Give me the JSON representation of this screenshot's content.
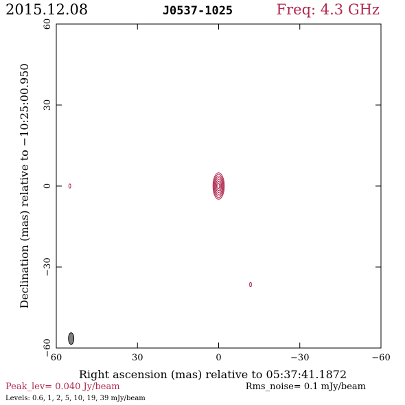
{
  "header": {
    "date": "2015.12.08",
    "source": "J0537-1025",
    "freq": "Freq: 4.3 GHz"
  },
  "footer": {
    "peak": "Peak_lev=  0.040 Jy/beam",
    "rms": "Rms_noise=  0.1 mJy/beam",
    "levels": "Levels: 0.6,   1,   2,   5,  10,  19,  39 mJy/beam"
  },
  "colors": {
    "contour": "#b0284f",
    "accent_text": "#b0284f",
    "axis": "#000000",
    "beam_fill": "#808080"
  },
  "chart_data": {
    "type": "contour",
    "xlabel": "Right ascension (mas) relative to 05:37:41.1872",
    "ylabel": "Declination (mas) relative to −10:25:00.950",
    "xlim": [
      60,
      -60
    ],
    "ylim": [
      -60,
      60
    ],
    "x_ticks": [
      60,
      30,
      0,
      -30,
      -60
    ],
    "y_ticks": [
      60,
      30,
      0,
      -30,
      -60
    ],
    "x_tick_labels": [
      "60",
      "30",
      "0",
      "−30",
      "−60"
    ],
    "y_tick_labels": [
      "60",
      "30",
      "0",
      "−30",
      "−60"
    ],
    "levels_mJy": [
      0.6,
      1,
      2,
      5,
      10,
      19,
      39
    ],
    "peak_Jy_per_beam": 0.04,
    "rms_mJy_per_beam": 0.1,
    "components": [
      {
        "name": "core",
        "x": 0.0,
        "y": 0.0,
        "contours": [
          {
            "rx": 2.1,
            "ry": 4.9
          },
          {
            "rx": 1.85,
            "ry": 4.3
          },
          {
            "rx": 1.6,
            "ry": 3.7
          },
          {
            "rx": 1.35,
            "ry": 3.1
          },
          {
            "rx": 1.05,
            "ry": 2.4
          },
          {
            "rx": 0.75,
            "ry": 1.7
          },
          {
            "rx": 0.35,
            "ry": 0.9
          }
        ]
      },
      {
        "name": "left-blob",
        "x": 55.0,
        "y": 0.0,
        "contours": [
          {
            "rx": 0.35,
            "ry": 0.8
          }
        ]
      },
      {
        "name": "lower-blob",
        "x": -11.8,
        "y": -36.5,
        "contours": [
          {
            "rx": 0.35,
            "ry": 0.8
          }
        ]
      }
    ],
    "beam": {
      "x": 54.5,
      "y": -56.5,
      "major_mas": 4.3,
      "minor_mas": 2.0,
      "pa_deg": 0
    }
  }
}
